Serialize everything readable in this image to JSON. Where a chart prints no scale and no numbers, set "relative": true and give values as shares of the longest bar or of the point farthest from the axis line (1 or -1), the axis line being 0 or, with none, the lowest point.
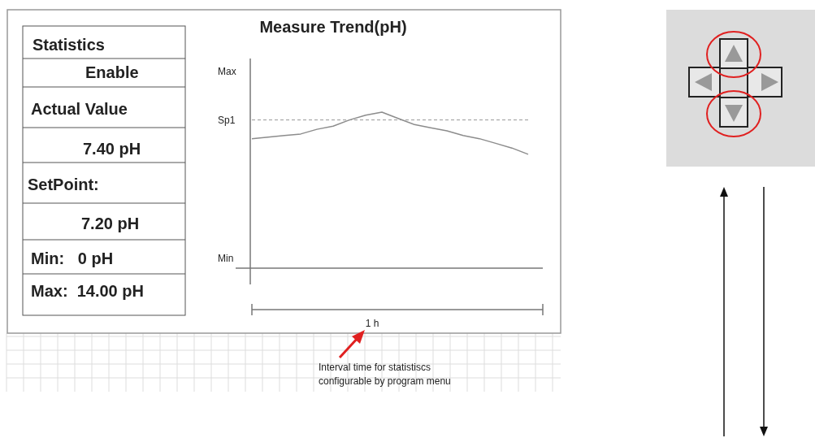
{
  "chart_data": {
    "type": "line",
    "title": "Measure Trend(pH)",
    "relative": true,
    "categories": [
      null,
      null,
      null,
      null,
      null,
      null,
      null,
      null,
      null,
      null,
      null,
      null,
      null,
      null,
      null,
      null,
      null,
      null
    ],
    "series": [
      {
        "color": "#8c8c8c",
        "values": [
          0.83,
          0.84,
          0.85,
          0.86,
          0.89,
          0.91,
          0.95,
          0.98,
          1.0,
          0.96,
          0.92,
          0.9,
          0.88,
          0.85,
          0.83,
          0.8,
          0.77,
          0.73
        ]
      }
    ],
    "ref_lines": [
      {
        "axis": "y",
        "value": 0.95,
        "label": "Sp1",
        "line_style": "dashed",
        "color": "#999999"
      }
    ],
    "annotations": [
      "Statistics",
      "Enable",
      "Actual Value",
      "7.40 pH",
      "SetPoint:",
      "7.20 pH",
      "Min:   0 pH",
      "Max:  14.00 pH",
      "Max",
      "Min",
      "1 h",
      "Interval time for statistiscs",
      "configurable by program menu"
    ]
  }
}
